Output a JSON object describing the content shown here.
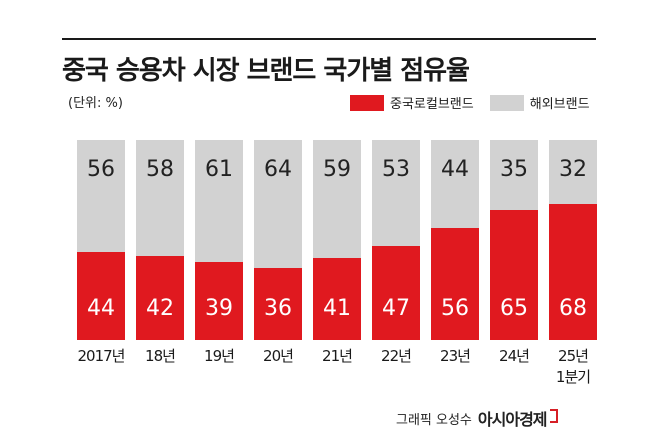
{
  "chart_data": {
    "type": "bar",
    "title": "중국 승용차 시장 브랜드 국가별 점유율",
    "unit_note": "(단위: %)",
    "stacked": true,
    "categories": [
      "2017년",
      "18년",
      "19년",
      "20년",
      "21년",
      "22년",
      "23년",
      "24년",
      "25년"
    ],
    "category_sublabels": [
      "",
      "",
      "",
      "",
      "",
      "",
      "",
      "",
      "1분기"
    ],
    "series": [
      {
        "name": "중국로컬브랜드",
        "color": "#e0191f",
        "values": [
          44,
          42,
          39,
          36,
          41,
          47,
          56,
          65,
          68
        ]
      },
      {
        "name": "해외브랜드",
        "color": "#d2d2d2",
        "values": [
          56,
          58,
          61,
          64,
          59,
          53,
          44,
          35,
          32
        ]
      }
    ],
    "ylim": [
      0,
      100
    ],
    "grid": false,
    "legend": "top-right"
  },
  "credit": {
    "graphic": "그래픽 오성수",
    "brand": "아시아경제"
  }
}
